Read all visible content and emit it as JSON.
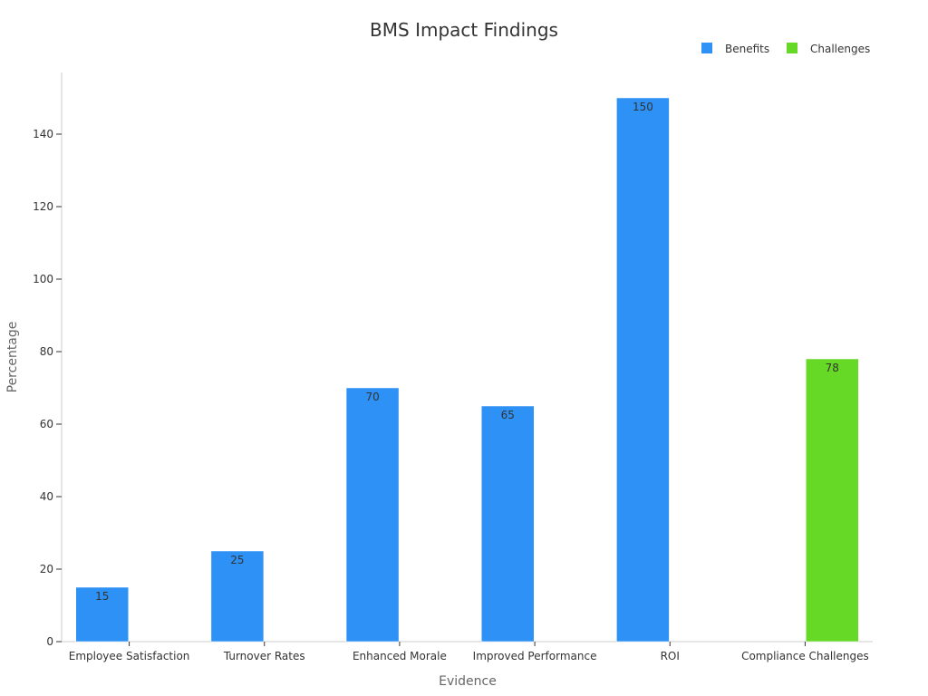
{
  "chart_data": {
    "type": "bar",
    "title": "BMS Impact Findings",
    "xlabel": "Evidence",
    "ylabel": "Percentage",
    "categories": [
      "Employee Satisfaction",
      "Turnover Rates",
      "Enhanced Morale",
      "Improved Performance",
      "ROI",
      "Compliance Challenges"
    ],
    "series": [
      {
        "name": "Benefits",
        "color": "#2e91f5",
        "values": [
          15,
          25,
          70,
          65,
          150,
          null
        ]
      },
      {
        "name": "Challenges",
        "color": "#66d926",
        "values": [
          null,
          null,
          null,
          null,
          null,
          78
        ]
      }
    ],
    "ylim": [
      0,
      157
    ],
    "yticks": [
      0,
      20,
      40,
      60,
      80,
      100,
      120,
      140
    ],
    "legend": "top-right",
    "grid": false
  }
}
